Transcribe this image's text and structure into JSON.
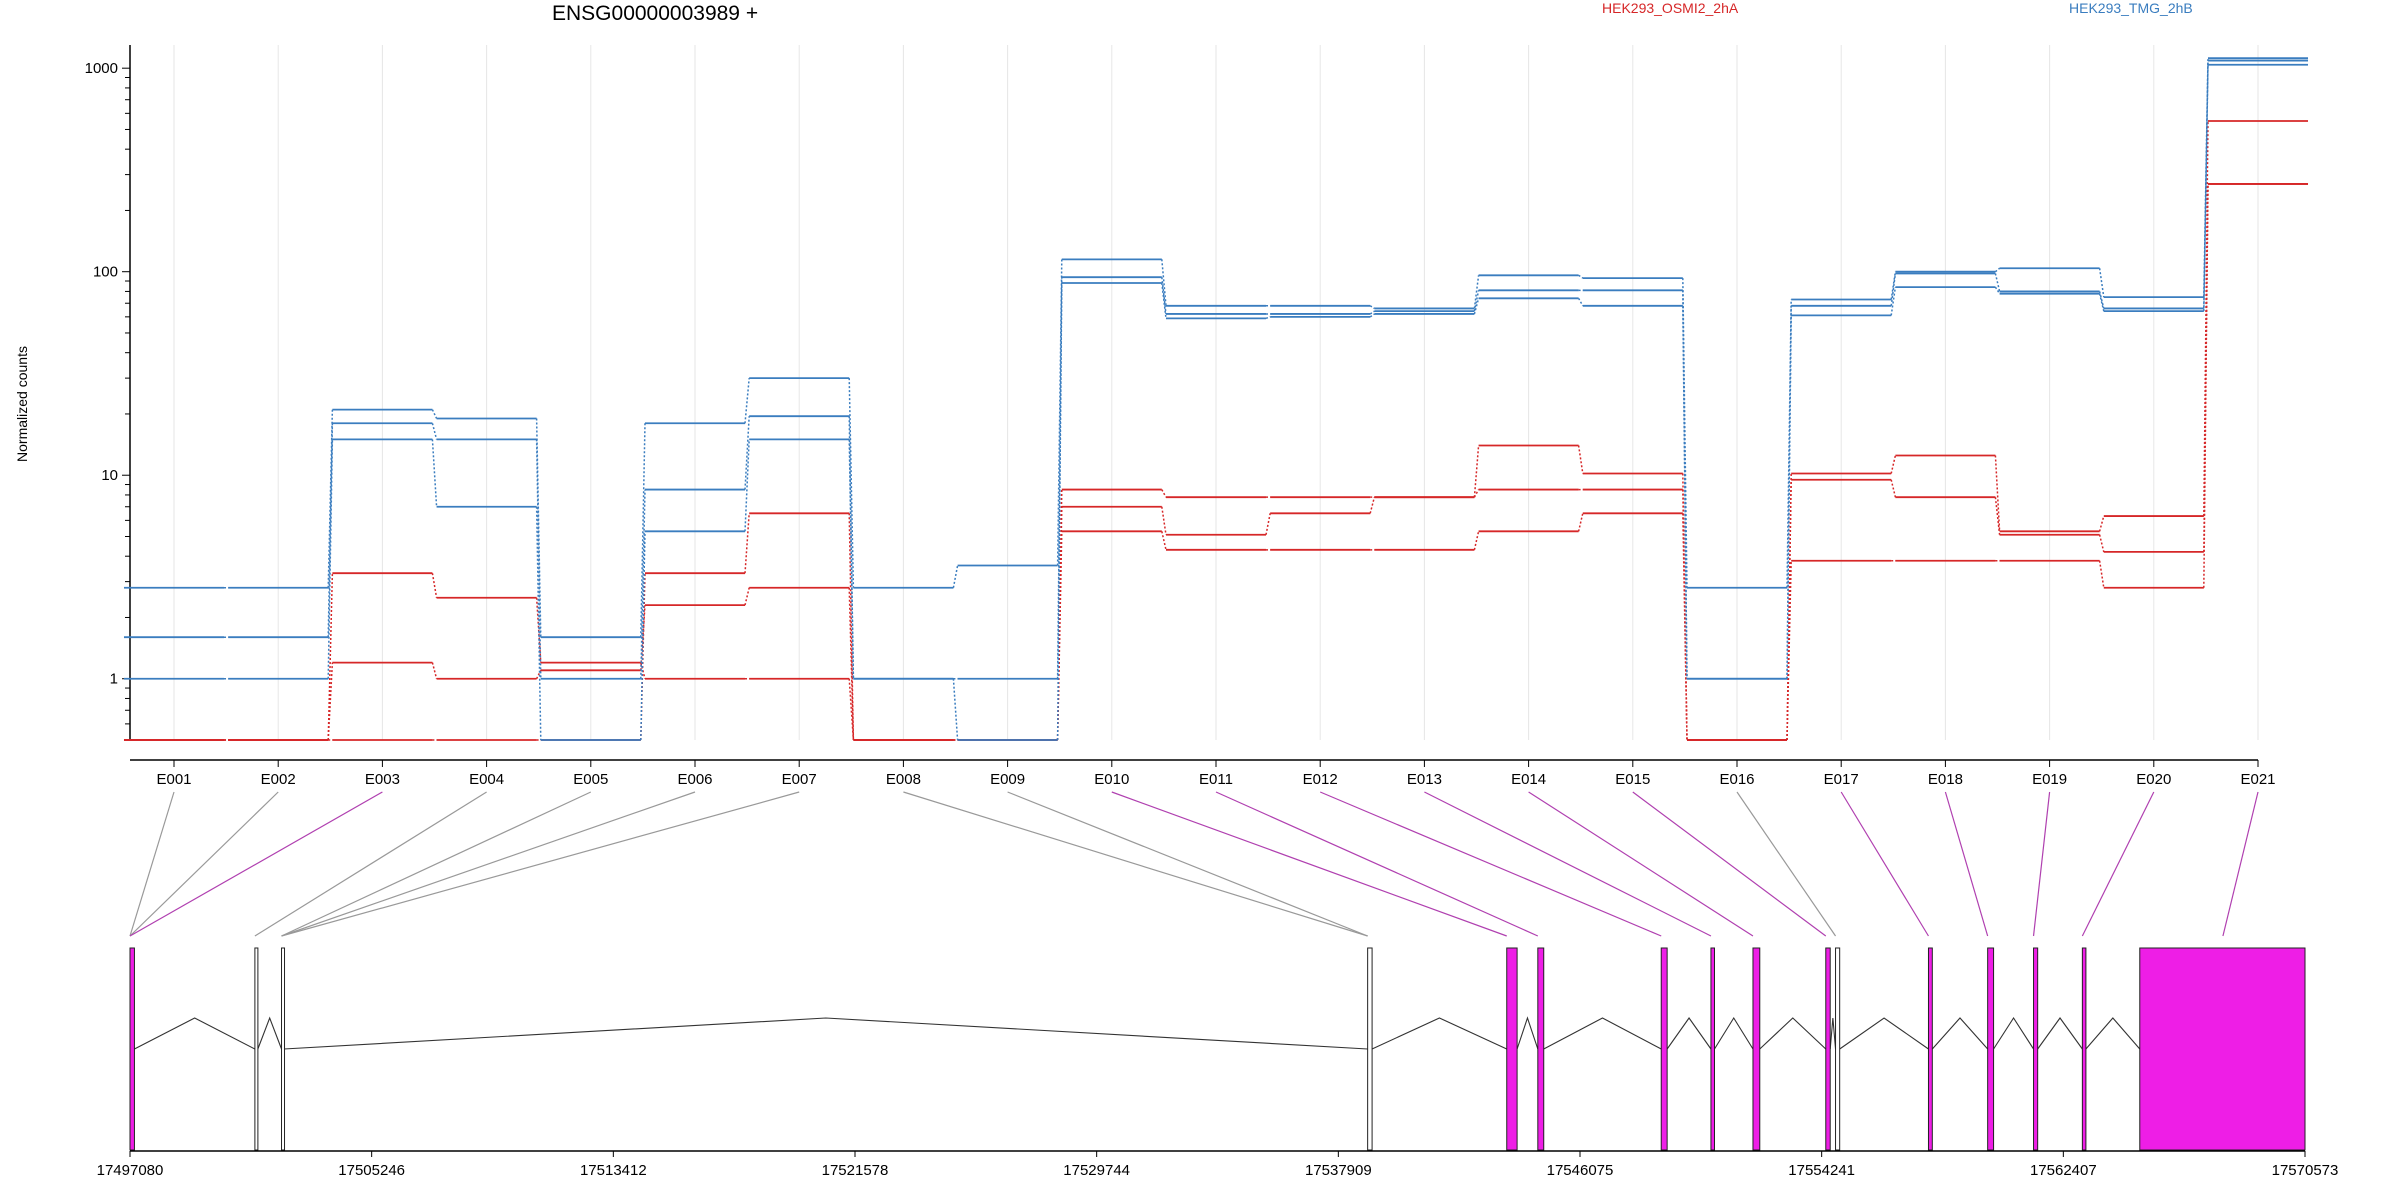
{
  "title": "ENSG00000003989 +",
  "ylabel": "Normalized counts",
  "legend": [
    {
      "label": "HEK293_OSMI2_2hA",
      "color": "#d62728"
    },
    {
      "label": "HEK293_TMG_2hB",
      "color": "#3a7dbf"
    }
  ],
  "chart_data": {
    "type": "line",
    "yscale": "log",
    "ylim": [
      0.5,
      1300
    ],
    "yticks": [
      1,
      10,
      100,
      1000
    ],
    "ytick_labels": [
      "1",
      "10",
      "100",
      "1000"
    ],
    "categories": [
      "E001",
      "E002",
      "E003",
      "E004",
      "E005",
      "E006",
      "E007",
      "E008",
      "E009",
      "E010",
      "E011",
      "E012",
      "E013",
      "E014",
      "E015",
      "E016",
      "E017",
      "E018",
      "E019",
      "E020",
      "E021"
    ],
    "series": [
      {
        "group": "HEK293_OSMI2_2hA",
        "color": "#d62728",
        "values": [
          0.5,
          0.5,
          3.3,
          2.5,
          1.2,
          1.0,
          1.0,
          0.5,
          0.5,
          8.5,
          7.8,
          7.8,
          7.8,
          14.0,
          10.2,
          0.5,
          10.2,
          12.5,
          5.3,
          6.3,
          550
        ]
      },
      {
        "group": "HEK293_OSMI2_2hA",
        "color": "#d62728",
        "values": [
          0.5,
          0.5,
          1.2,
          1.0,
          1.1,
          2.3,
          2.8,
          0.5,
          0.5,
          7.0,
          5.1,
          6.5,
          7.8,
          8.5,
          8.5,
          0.5,
          9.5,
          7.8,
          5.1,
          4.2,
          270
        ]
      },
      {
        "group": "HEK293_OSMI2_2hA",
        "color": "#d62728",
        "values": [
          0.5,
          0.5,
          0.5,
          0.5,
          0.5,
          3.3,
          6.5,
          0.5,
          0.5,
          5.3,
          4.3,
          4.3,
          4.3,
          5.3,
          6.5,
          0.5,
          3.8,
          3.8,
          3.8,
          2.8,
          270
        ]
      },
      {
        "group": "HEK293_TMG_2hB",
        "color": "#3a7dbf",
        "values": [
          2.8,
          2.8,
          21,
          19,
          1.6,
          18,
          30,
          2.8,
          3.6,
          115,
          68,
          68,
          66,
          96,
          93,
          2.8,
          73,
          100,
          104,
          75,
          1120
        ]
      },
      {
        "group": "HEK293_TMG_2hB",
        "color": "#3a7dbf",
        "values": [
          1.6,
          1.6,
          18,
          15,
          1.0,
          8.5,
          19.5,
          1.0,
          1.0,
          94,
          62,
          62,
          64,
          81,
          81,
          1.0,
          68,
          98,
          80,
          66,
          1090
        ]
      },
      {
        "group": "HEK293_TMG_2hB",
        "color": "#3a7dbf",
        "values": [
          1.0,
          1.0,
          15,
          7.0,
          0.5,
          5.3,
          15,
          1.0,
          0.5,
          88,
          59,
          60,
          62,
          74,
          68,
          1.0,
          61,
          84,
          78,
          64,
          1040
        ]
      }
    ],
    "genomic_axis": {
      "tick_labels": [
        "17497080",
        "17505246",
        "17513412",
        "17521578",
        "17529744",
        "17537909",
        "17546075",
        "17554241",
        "17562407",
        "17570573"
      ],
      "range": [
        17497080,
        17570573
      ]
    },
    "exons": [
      {
        "id": "E001",
        "start": 17497080,
        "end": 17497230,
        "color": "#ee1ee6"
      },
      {
        "id": "E002",
        "start": 17501300,
        "end": 17501400,
        "color": "#ffffff"
      },
      {
        "id": "E003",
        "start": 17502200,
        "end": 17502280,
        "color": "#ffffff"
      },
      {
        "id": "E008",
        "start": 17538900,
        "end": 17539050,
        "color": "#ffffff"
      },
      {
        "id": "E010",
        "start": 17543600,
        "end": 17543950,
        "color": "#ee1ee6"
      },
      {
        "id": "E011",
        "start": 17544650,
        "end": 17544850,
        "color": "#ee1ee6"
      },
      {
        "id": "E012",
        "start": 17548820,
        "end": 17549020,
        "color": "#ee1ee6"
      },
      {
        "id": "E013",
        "start": 17550500,
        "end": 17550620,
        "color": "#ee1ee6"
      },
      {
        "id": "E014",
        "start": 17551920,
        "end": 17552150,
        "color": "#ee1ee6"
      },
      {
        "id": "E015",
        "start": 17554380,
        "end": 17554530,
        "color": "#ee1ee6"
      },
      {
        "id": "E016",
        "start": 17554710,
        "end": 17554850,
        "color": "#ffffff"
      },
      {
        "id": "E017",
        "start": 17557850,
        "end": 17557980,
        "color": "#ee1ee6"
      },
      {
        "id": "E018",
        "start": 17559850,
        "end": 17560050,
        "color": "#ee1ee6"
      },
      {
        "id": "E019",
        "start": 17561400,
        "end": 17561540,
        "color": "#ee1ee6"
      },
      {
        "id": "E020",
        "start": 17563050,
        "end": 17563170,
        "color": "#ee1ee6"
      },
      {
        "id": "E021",
        "start": 17564990,
        "end": 17570573,
        "color": "#ee1ee6"
      }
    ],
    "exon_mapping": [
      {
        "bin": "E001",
        "pos": 17497080,
        "color": "#999999"
      },
      {
        "bin": "E002",
        "pos": 17497080,
        "color": "#999999"
      },
      {
        "bin": "E003",
        "pos": 17497080,
        "color": "#b040b0"
      },
      {
        "bin": "E004",
        "pos": 17501300,
        "color": "#999999"
      },
      {
        "bin": "E005",
        "pos": 17502200,
        "color": "#999999"
      },
      {
        "bin": "E006",
        "pos": 17502200,
        "color": "#999999"
      },
      {
        "bin": "E007",
        "pos": 17502200,
        "color": "#999999"
      },
      {
        "bin": "E008",
        "pos": 17538900,
        "color": "#999999"
      },
      {
        "bin": "E009",
        "pos": 17538900,
        "color": "#999999"
      },
      {
        "bin": "E010",
        "pos": 17543600,
        "color": "#b040b0"
      },
      {
        "bin": "E011",
        "pos": 17544650,
        "color": "#b040b0"
      },
      {
        "bin": "E012",
        "pos": 17548820,
        "color": "#b040b0"
      },
      {
        "bin": "E013",
        "pos": 17550500,
        "color": "#b040b0"
      },
      {
        "bin": "E014",
        "pos": 17551920,
        "color": "#b040b0"
      },
      {
        "bin": "E015",
        "pos": 17554380,
        "color": "#b040b0"
      },
      {
        "bin": "E016",
        "pos": 17554710,
        "color": "#999999"
      },
      {
        "bin": "E017",
        "pos": 17557850,
        "color": "#b040b0"
      },
      {
        "bin": "E018",
        "pos": 17559850,
        "color": "#b040b0"
      },
      {
        "bin": "E019",
        "pos": 17561400,
        "color": "#b040b0"
      },
      {
        "bin": "E020",
        "pos": 17563050,
        "color": "#b040b0"
      },
      {
        "bin": "E021",
        "pos": 17567800,
        "color": "#b040b0"
      }
    ]
  }
}
